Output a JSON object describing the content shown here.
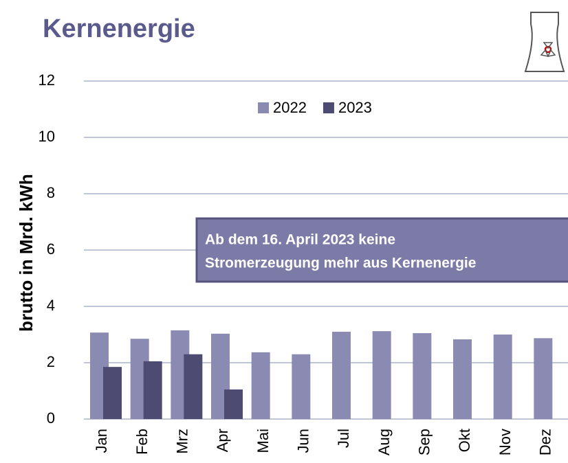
{
  "chart_data": {
    "type": "bar",
    "title": "Kernenergie",
    "y_label": "brutto in  Mrd. kWh",
    "annotation": [
      "Ab dem 16. April 2023 keine",
      "Stromerzeugung mehr aus Kernenergie"
    ],
    "categories": [
      "Jan",
      "Feb",
      "Mrz",
      "Apr",
      "Mai",
      "Jun",
      "Jul",
      "Aug",
      "Sep",
      "Okt",
      "Nov",
      "Dez"
    ],
    "series": [
      {
        "name": "2022",
        "color": "#8b8ab3",
        "values": [
          3.07,
          2.85,
          3.15,
          3.03,
          2.37,
          2.3,
          3.1,
          3.12,
          3.05,
          2.83,
          3.0,
          2.87
        ]
      },
      {
        "name": "2023",
        "color": "#4d4b72",
        "values": [
          1.85,
          2.05,
          2.3,
          1.05,
          null,
          null,
          null,
          null,
          null,
          null,
          null,
          null
        ]
      }
    ],
    "ylim": [
      0,
      12
    ],
    "yticks": [
      0,
      2,
      4,
      6,
      8,
      10,
      12
    ],
    "grid": true,
    "legend": "top"
  }
}
